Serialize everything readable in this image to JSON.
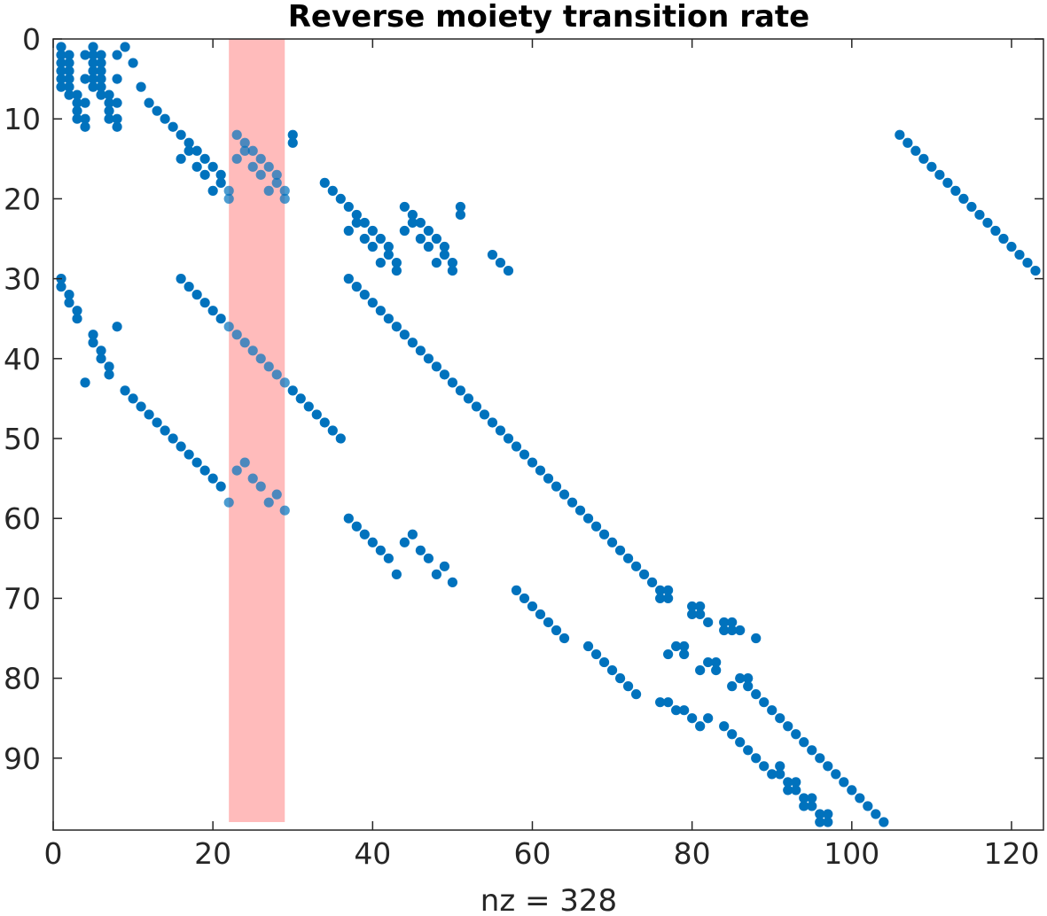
{
  "chart_data": {
    "type": "scatter",
    "title": "Reverse moiety transition rate",
    "xlabel": "nz = 328",
    "ylabel": "",
    "xlim": [
      0,
      124
    ],
    "ylim": [
      0,
      99
    ],
    "y_reversed": true,
    "x_ticks": [
      0,
      20,
      40,
      60,
      80,
      100,
      120
    ],
    "y_ticks": [
      0,
      10,
      20,
      30,
      40,
      50,
      60,
      70,
      80,
      90
    ],
    "grid": false,
    "marker_color": "#0072BD",
    "highlight": {
      "x_range": [
        22,
        29
      ],
      "y_range": [
        0,
        98
      ],
      "color": "#FFBBBB"
    },
    "nonzeros": [
      [
        1,
        1
      ],
      [
        1,
        2
      ],
      [
        1,
        3
      ],
      [
        1,
        4
      ],
      [
        1,
        5
      ],
      [
        1,
        6
      ],
      [
        2,
        2
      ],
      [
        2,
        3
      ],
      [
        2,
        4
      ],
      [
        2,
        5
      ],
      [
        2,
        6
      ],
      [
        2,
        7
      ],
      [
        3,
        7
      ],
      [
        3,
        8
      ],
      [
        3,
        9
      ],
      [
        3,
        10
      ],
      [
        4,
        2
      ],
      [
        4,
        5
      ],
      [
        4,
        8
      ],
      [
        4,
        10
      ],
      [
        4,
        11
      ],
      [
        5,
        1
      ],
      [
        5,
        2
      ],
      [
        5,
        3
      ],
      [
        5,
        4
      ],
      [
        5,
        5
      ],
      [
        5,
        6
      ],
      [
        6,
        2
      ],
      [
        6,
        3
      ],
      [
        6,
        4
      ],
      [
        6,
        5
      ],
      [
        6,
        6
      ],
      [
        6,
        7
      ],
      [
        7,
        7
      ],
      [
        7,
        8
      ],
      [
        7,
        9
      ],
      [
        7,
        10
      ],
      [
        8,
        2
      ],
      [
        8,
        5
      ],
      [
        8,
        8
      ],
      [
        8,
        10
      ],
      [
        8,
        11
      ],
      [
        9,
        1
      ],
      [
        10,
        3
      ],
      [
        11,
        6
      ],
      [
        12,
        8
      ],
      [
        13,
        9
      ],
      [
        14,
        10
      ],
      [
        15,
        11
      ],
      [
        16,
        12
      ],
      [
        16,
        15
      ],
      [
        17,
        13
      ],
      [
        17,
        14
      ],
      [
        18,
        14
      ],
      [
        18,
        16
      ],
      [
        19,
        15
      ],
      [
        19,
        17
      ],
      [
        20,
        16
      ],
      [
        20,
        19
      ],
      [
        21,
        17
      ],
      [
        21,
        18
      ],
      [
        22,
        19
      ],
      [
        22,
        20
      ],
      [
        23,
        12
      ],
      [
        23,
        15
      ],
      [
        24,
        13
      ],
      [
        24,
        14
      ],
      [
        25,
        14
      ],
      [
        25,
        16
      ],
      [
        26,
        15
      ],
      [
        26,
        17
      ],
      [
        27,
        16
      ],
      [
        27,
        19
      ],
      [
        28,
        17
      ],
      [
        28,
        18
      ],
      [
        29,
        19
      ],
      [
        29,
        20
      ],
      [
        30,
        12
      ],
      [
        30,
        13
      ],
      [
        34,
        18
      ],
      [
        35,
        19
      ],
      [
        36,
        20
      ],
      [
        37,
        21
      ],
      [
        37,
        24
      ],
      [
        38,
        22
      ],
      [
        38,
        23
      ],
      [
        39,
        23
      ],
      [
        39,
        25
      ],
      [
        40,
        24
      ],
      [
        40,
        26
      ],
      [
        41,
        25
      ],
      [
        41,
        28
      ],
      [
        42,
        26
      ],
      [
        42,
        27
      ],
      [
        43,
        28
      ],
      [
        43,
        29
      ],
      [
        44,
        21
      ],
      [
        44,
        24
      ],
      [
        45,
        22
      ],
      [
        45,
        23
      ],
      [
        46,
        23
      ],
      [
        46,
        25
      ],
      [
        47,
        24
      ],
      [
        47,
        26
      ],
      [
        48,
        25
      ],
      [
        48,
        28
      ],
      [
        49,
        26
      ],
      [
        49,
        27
      ],
      [
        50,
        28
      ],
      [
        50,
        29
      ],
      [
        51,
        21
      ],
      [
        51,
        22
      ],
      [
        55,
        27
      ],
      [
        56,
        28
      ],
      [
        57,
        29
      ],
      [
        1,
        30
      ],
      [
        1,
        31
      ],
      [
        2,
        32
      ],
      [
        2,
        33
      ],
      [
        3,
        34
      ],
      [
        3,
        35
      ],
      [
        4,
        43
      ],
      [
        5,
        37
      ],
      [
        5,
        38
      ],
      [
        6,
        39
      ],
      [
        6,
        40
      ],
      [
        7,
        41
      ],
      [
        7,
        42
      ],
      [
        8,
        36
      ],
      [
        16,
        30
      ],
      [
        17,
        31
      ],
      [
        18,
        32
      ],
      [
        19,
        33
      ],
      [
        20,
        34
      ],
      [
        21,
        35
      ],
      [
        22,
        36
      ],
      [
        23,
        37
      ],
      [
        24,
        38
      ],
      [
        25,
        39
      ],
      [
        26,
        40
      ],
      [
        27,
        41
      ],
      [
        28,
        42
      ],
      [
        29,
        43
      ],
      [
        30,
        44
      ],
      [
        31,
        45
      ],
      [
        32,
        46
      ],
      [
        33,
        47
      ],
      [
        34,
        48
      ],
      [
        35,
        49
      ],
      [
        36,
        50
      ],
      [
        37,
        30
      ],
      [
        38,
        31
      ],
      [
        39,
        32
      ],
      [
        40,
        33
      ],
      [
        41,
        34
      ],
      [
        42,
        35
      ],
      [
        43,
        36
      ],
      [
        44,
        37
      ],
      [
        45,
        38
      ],
      [
        46,
        39
      ],
      [
        47,
        40
      ],
      [
        48,
        41
      ],
      [
        49,
        42
      ],
      [
        50,
        43
      ],
      [
        51,
        44
      ],
      [
        52,
        45
      ],
      [
        53,
        46
      ],
      [
        54,
        47
      ],
      [
        55,
        48
      ],
      [
        56,
        49
      ],
      [
        57,
        50
      ],
      [
        58,
        51
      ],
      [
        59,
        52
      ],
      [
        60,
        53
      ],
      [
        61,
        54
      ],
      [
        62,
        55
      ],
      [
        63,
        56
      ],
      [
        64,
        57
      ],
      [
        65,
        58
      ],
      [
        66,
        59
      ],
      [
        67,
        60
      ],
      [
        68,
        61
      ],
      [
        69,
        62
      ],
      [
        70,
        63
      ],
      [
        71,
        64
      ],
      [
        72,
        65
      ],
      [
        73,
        66
      ],
      [
        74,
        67
      ],
      [
        75,
        68
      ],
      [
        76,
        69
      ],
      [
        76,
        70
      ],
      [
        77,
        69
      ],
      [
        77,
        70
      ],
      [
        80,
        71
      ],
      [
        80,
        72
      ],
      [
        81,
        71
      ],
      [
        81,
        72
      ],
      [
        82,
        73
      ],
      [
        84,
        73
      ],
      [
        84,
        74
      ],
      [
        85,
        73
      ],
      [
        85,
        74
      ],
      [
        86,
        74
      ],
      [
        88,
        75
      ],
      [
        9,
        44
      ],
      [
        10,
        45
      ],
      [
        11,
        46
      ],
      [
        12,
        47
      ],
      [
        13,
        48
      ],
      [
        14,
        49
      ],
      [
        15,
        50
      ],
      [
        16,
        51
      ],
      [
        17,
        52
      ],
      [
        18,
        53
      ],
      [
        19,
        54
      ],
      [
        20,
        55
      ],
      [
        21,
        56
      ],
      [
        22,
        58
      ],
      [
        23,
        54
      ],
      [
        24,
        53
      ],
      [
        25,
        55
      ],
      [
        26,
        56
      ],
      [
        27,
        58
      ],
      [
        28,
        57
      ],
      [
        29,
        59
      ],
      [
        37,
        60
      ],
      [
        38,
        61
      ],
      [
        39,
        62
      ],
      [
        40,
        63
      ],
      [
        41,
        64
      ],
      [
        42,
        65
      ],
      [
        43,
        67
      ],
      [
        44,
        63
      ],
      [
        45,
        62
      ],
      [
        46,
        64
      ],
      [
        47,
        65
      ],
      [
        48,
        67
      ],
      [
        49,
        66
      ],
      [
        50,
        68
      ],
      [
        58,
        69
      ],
      [
        59,
        70
      ],
      [
        60,
        71
      ],
      [
        61,
        72
      ],
      [
        62,
        73
      ],
      [
        63,
        74
      ],
      [
        64,
        75
      ],
      [
        67,
        76
      ],
      [
        68,
        77
      ],
      [
        69,
        78
      ],
      [
        70,
        79
      ],
      [
        71,
        80
      ],
      [
        72,
        81
      ],
      [
        73,
        82
      ],
      [
        76,
        83
      ],
      [
        77,
        77
      ],
      [
        77,
        83
      ],
      [
        78,
        76
      ],
      [
        78,
        84
      ],
      [
        79,
        76
      ],
      [
        79,
        77
      ],
      [
        79,
        84
      ],
      [
        80,
        85
      ],
      [
        81,
        79
      ],
      [
        81,
        86
      ],
      [
        82,
        78
      ],
      [
        82,
        85
      ],
      [
        83,
        78
      ],
      [
        83,
        79
      ],
      [
        84,
        86
      ],
      [
        85,
        81
      ],
      [
        85,
        87
      ],
      [
        86,
        80
      ],
      [
        86,
        88
      ],
      [
        87,
        80
      ],
      [
        87,
        81
      ],
      [
        87,
        89
      ],
      [
        88,
        82
      ],
      [
        88,
        90
      ],
      [
        89,
        83
      ],
      [
        89,
        91
      ],
      [
        90,
        84
      ],
      [
        90,
        92
      ],
      [
        91,
        85
      ],
      [
        91,
        91
      ],
      [
        91,
        92
      ],
      [
        92,
        86
      ],
      [
        92,
        93
      ],
      [
        92,
        94
      ],
      [
        93,
        87
      ],
      [
        93,
        93
      ],
      [
        93,
        94
      ],
      [
        94,
        88
      ],
      [
        94,
        95
      ],
      [
        94,
        96
      ],
      [
        95,
        89
      ],
      [
        95,
        95
      ],
      [
        95,
        96
      ],
      [
        96,
        90
      ],
      [
        96,
        97
      ],
      [
        96,
        98
      ],
      [
        97,
        91
      ],
      [
        97,
        97
      ],
      [
        97,
        98
      ],
      [
        98,
        92
      ],
      [
        99,
        93
      ],
      [
        100,
        94
      ],
      [
        101,
        95
      ],
      [
        102,
        96
      ],
      [
        103,
        97
      ],
      [
        104,
        98
      ],
      [
        106,
        12
      ],
      [
        107,
        13
      ],
      [
        108,
        14
      ],
      [
        109,
        15
      ],
      [
        110,
        16
      ],
      [
        111,
        17
      ],
      [
        112,
        18
      ],
      [
        113,
        19
      ],
      [
        114,
        20
      ],
      [
        115,
        21
      ],
      [
        116,
        22
      ],
      [
        117,
        23
      ],
      [
        118,
        24
      ],
      [
        119,
        25
      ],
      [
        120,
        26
      ],
      [
        121,
        27
      ],
      [
        122,
        28
      ],
      [
        123,
        29
      ]
    ]
  }
}
